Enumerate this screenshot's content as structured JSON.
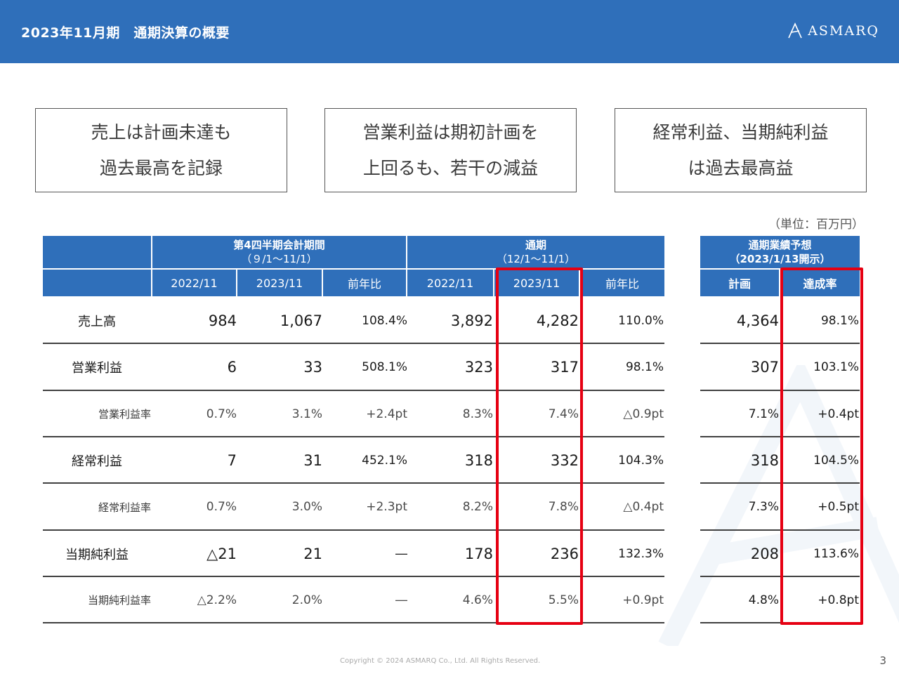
{
  "header": {
    "title": "2023年11月期　通期決算の概要",
    "logo": "ASMARQ"
  },
  "callouts": [
    {
      "line1": "売上は計画未達も",
      "line2": "過去最高を記録"
    },
    {
      "line1": "営業利益は期初計画を",
      "line2": "上回るも、若干の減益"
    },
    {
      "line1": "経常利益、当期純利益",
      "line2": "は過去最高益"
    }
  ],
  "unit": "（単位：百万円）",
  "table": {
    "q4_header": {
      "line1": "第4四半期会計期間",
      "line2": "（９/1〜11/1）"
    },
    "full_header": {
      "line1": "通期",
      "line2": "（12/1〜11/1）"
    },
    "q4_cols": [
      "2022/11",
      "2023/11",
      "前年比"
    ],
    "full_cols": [
      "2022/11",
      "2023/11",
      "前年比"
    ],
    "rows": [
      {
        "label": "売上高",
        "q4_2022": "984",
        "q4_2023": "1,067",
        "q4_yoy": "108.4%",
        "fy_2022": "3,892",
        "fy_2023": "4,282",
        "fy_yoy": "110.0%"
      },
      {
        "label": "営業利益",
        "q4_2022": "6",
        "q4_2023": "33",
        "q4_yoy": "508.1%",
        "fy_2022": "323",
        "fy_2023": "317",
        "fy_yoy": "98.1%"
      },
      {
        "label": "営業利益率",
        "q4_2022": "0.7%",
        "q4_2023": "3.1%",
        "q4_yoy": "+2.4pt",
        "fy_2022": "8.3%",
        "fy_2023": "7.4%",
        "fy_yoy": "△0.9pt"
      },
      {
        "label": "経常利益",
        "q4_2022": "7",
        "q4_2023": "31",
        "q4_yoy": "452.1%",
        "fy_2022": "318",
        "fy_2023": "332",
        "fy_yoy": "104.3%"
      },
      {
        "label": "経常利益率",
        "q4_2022": "0.7%",
        "q4_2023": "3.0%",
        "q4_yoy": "+2.3pt",
        "fy_2022": "8.2%",
        "fy_2023": "7.8%",
        "fy_yoy": "△0.4pt"
      },
      {
        "label": "当期純利益",
        "q4_2022": "△21",
        "q4_2023": "21",
        "q4_yoy": "―",
        "fy_2022": "178",
        "fy_2023": "236",
        "fy_yoy": "132.3%"
      },
      {
        "label": "当期純利益率",
        "q4_2022": "△2.2%",
        "q4_2023": "2.0%",
        "q4_yoy": "―",
        "fy_2022": "4.6%",
        "fy_2023": "5.5%",
        "fy_yoy": "+0.9pt"
      }
    ]
  },
  "forecast": {
    "header": {
      "line1": "通期業績予想",
      "line2": "（2023/1/13開示）"
    },
    "cols": [
      "計画",
      "達成率"
    ],
    "rows": [
      {
        "plan": "4,364",
        "rate": "98.1%"
      },
      {
        "plan": "307",
        "rate": "103.1%"
      },
      {
        "plan": "7.1%",
        "rate": "+0.4pt"
      },
      {
        "plan": "318",
        "rate": "104.5%"
      },
      {
        "plan": "7.3%",
        "rate": "+0.5pt"
      },
      {
        "plan": "208",
        "rate": "113.6%"
      },
      {
        "plan": "4.8%",
        "rate": "+0.8pt"
      }
    ]
  },
  "footer": {
    "copyright": "Copyright © 2024 ASMARQ Co., Ltd. All Rights Reserved.",
    "page": "3"
  },
  "colors": {
    "header_blue": "#2f6fba",
    "highlight_red": "#e60012"
  }
}
